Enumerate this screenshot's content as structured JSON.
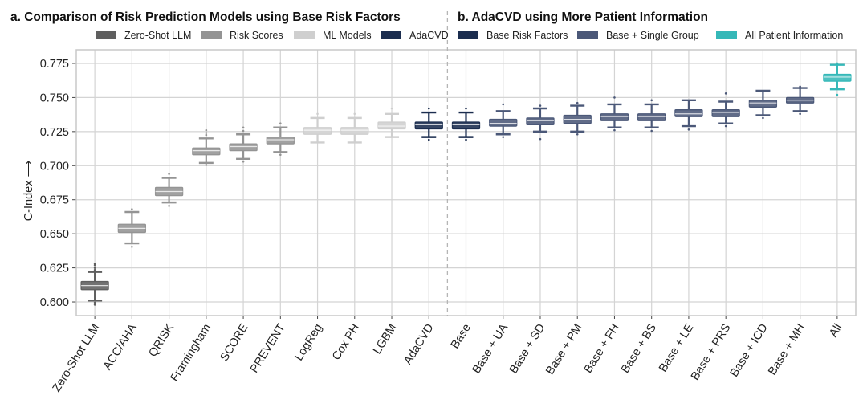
{
  "chart_data": {
    "type": "boxplot",
    "panel_titles": {
      "a": "a. Comparison of Risk Prediction Models using Base Risk Factors",
      "b": "b. AdaCVD using More Patient Information"
    },
    "ylabel": "C-Index",
    "ylabel_arrow": "⟶",
    "ylim": [
      0.59,
      0.785
    ],
    "yticks": [
      "0.600",
      "0.625",
      "0.650",
      "0.675",
      "0.700",
      "0.725",
      "0.750",
      "0.775"
    ],
    "grid": true,
    "legend_a": [
      {
        "label": "Zero-Shot LLM",
        "color": "#5f5f5f"
      },
      {
        "label": "Risk Scores",
        "color": "#949494"
      },
      {
        "label": "ML Models",
        "color": "#cfcfcf"
      },
      {
        "label": "AdaCVD",
        "color": "#1b2d4f"
      }
    ],
    "legend_b": [
      {
        "label": "Base Risk Factors",
        "color": "#1b2d4f"
      },
      {
        "label": "Base + Single Group",
        "color": "#4b5878"
      },
      {
        "label": "All Patient Information",
        "color": "#35b8b8"
      }
    ],
    "boxes": [
      {
        "label": "Zero-Shot LLM",
        "panel": "a",
        "color": "#5f5f5f",
        "min": 0.601,
        "q1": 0.609,
        "median": 0.612,
        "q3": 0.615,
        "max": 0.622,
        "outliers": [
          0.6235,
          0.625,
          0.627,
          0.628,
          0.5995,
          0.598
        ]
      },
      {
        "label": "ACC/AHA",
        "panel": "a",
        "color": "#949494",
        "min": 0.643,
        "q1": 0.651,
        "median": 0.654,
        "q3": 0.657,
        "max": 0.666,
        "outliers": [
          0.668,
          0.6405
        ]
      },
      {
        "label": "QRISK",
        "panel": "a",
        "color": "#949494",
        "min": 0.673,
        "q1": 0.678,
        "median": 0.681,
        "q3": 0.684,
        "max": 0.691,
        "outliers": [
          0.694,
          0.6705
        ]
      },
      {
        "label": "Framingham",
        "panel": "a",
        "color": "#949494",
        "min": 0.702,
        "q1": 0.708,
        "median": 0.711,
        "q3": 0.713,
        "max": 0.72,
        "outliers": [
          0.7225,
          0.724,
          0.726,
          0.7005
        ]
      },
      {
        "label": "SCORE",
        "panel": "a",
        "color": "#949494",
        "min": 0.705,
        "q1": 0.711,
        "median": 0.714,
        "q3": 0.716,
        "max": 0.723,
        "outliers": [
          0.7255,
          0.728,
          0.703
        ]
      },
      {
        "label": "PREVENT",
        "panel": "a",
        "color": "#949494",
        "min": 0.71,
        "q1": 0.716,
        "median": 0.719,
        "q3": 0.721,
        "max": 0.728,
        "outliers": [
          0.731,
          0.708
        ]
      },
      {
        "label": "LogReg",
        "panel": "a",
        "color": "#cfcfcf",
        "min": 0.717,
        "q1": 0.723,
        "median": 0.726,
        "q3": 0.728,
        "max": 0.735,
        "outliers": [
          0.738
        ]
      },
      {
        "label": "Cox PH",
        "panel": "a",
        "color": "#cfcfcf",
        "min": 0.717,
        "q1": 0.723,
        "median": 0.726,
        "q3": 0.728,
        "max": 0.735,
        "outliers": [
          0.738
        ]
      },
      {
        "label": "LGBM",
        "panel": "a",
        "color": "#cfcfcf",
        "min": 0.721,
        "q1": 0.727,
        "median": 0.729,
        "q3": 0.732,
        "max": 0.738,
        "outliers": [
          0.742
        ]
      },
      {
        "label": "AdaCVD",
        "panel": "a",
        "color": "#1b2d4f",
        "min": 0.721,
        "q1": 0.727,
        "median": 0.73,
        "q3": 0.732,
        "max": 0.739,
        "outliers": [
          0.742,
          0.719
        ]
      },
      {
        "label": "Base",
        "panel": "b",
        "color": "#1b2d4f",
        "min": 0.721,
        "q1": 0.727,
        "median": 0.73,
        "q3": 0.732,
        "max": 0.739,
        "outliers": [
          0.742,
          0.719
        ]
      },
      {
        "label": "Base + UA",
        "panel": "b",
        "color": "#4b5878",
        "min": 0.723,
        "q1": 0.729,
        "median": 0.731,
        "q3": 0.734,
        "max": 0.74,
        "outliers": [
          0.745,
          0.721
        ]
      },
      {
        "label": "Base + SD",
        "panel": "b",
        "color": "#4b5878",
        "min": 0.725,
        "q1": 0.73,
        "median": 0.733,
        "q3": 0.735,
        "max": 0.742,
        "outliers": [
          0.744,
          0.7195
        ]
      },
      {
        "label": "Base + PM",
        "panel": "b",
        "color": "#4b5878",
        "min": 0.725,
        "q1": 0.731,
        "median": 0.734,
        "q3": 0.737,
        "max": 0.744,
        "outliers": [
          0.746,
          0.723
        ]
      },
      {
        "label": "Base + FH",
        "panel": "b",
        "color": "#4b5878",
        "min": 0.728,
        "q1": 0.733,
        "median": 0.736,
        "q3": 0.738,
        "max": 0.745,
        "outliers": [
          0.75,
          0.726
        ]
      },
      {
        "label": "Base + BS",
        "panel": "b",
        "color": "#4b5878",
        "min": 0.728,
        "q1": 0.733,
        "median": 0.736,
        "q3": 0.738,
        "max": 0.745,
        "outliers": [
          0.748,
          0.7255
        ]
      },
      {
        "label": "Base + LE",
        "panel": "b",
        "color": "#4b5878",
        "min": 0.729,
        "q1": 0.736,
        "median": 0.738,
        "q3": 0.741,
        "max": 0.748,
        "outliers": [
          0.7265
        ]
      },
      {
        "label": "Base + PRS",
        "panel": "b",
        "color": "#4b5878",
        "min": 0.731,
        "q1": 0.736,
        "median": 0.739,
        "q3": 0.741,
        "max": 0.747,
        "outliers": [
          0.753,
          0.729
        ]
      },
      {
        "label": "Base + ICD",
        "panel": "b",
        "color": "#4b5878",
        "min": 0.737,
        "q1": 0.743,
        "median": 0.746,
        "q3": 0.748,
        "max": 0.755,
        "outliers": [
          0.735
        ]
      },
      {
        "label": "Base + MH",
        "panel": "b",
        "color": "#4b5878",
        "min": 0.74,
        "q1": 0.746,
        "median": 0.748,
        "q3": 0.75,
        "max": 0.757,
        "outliers": [
          0.758,
          0.738
        ]
      },
      {
        "label": "All",
        "panel": "b",
        "color": "#35b8b8",
        "min": 0.756,
        "q1": 0.762,
        "median": 0.765,
        "q3": 0.767,
        "max": 0.774,
        "outliers": [
          0.775,
          0.752
        ]
      }
    ]
  }
}
